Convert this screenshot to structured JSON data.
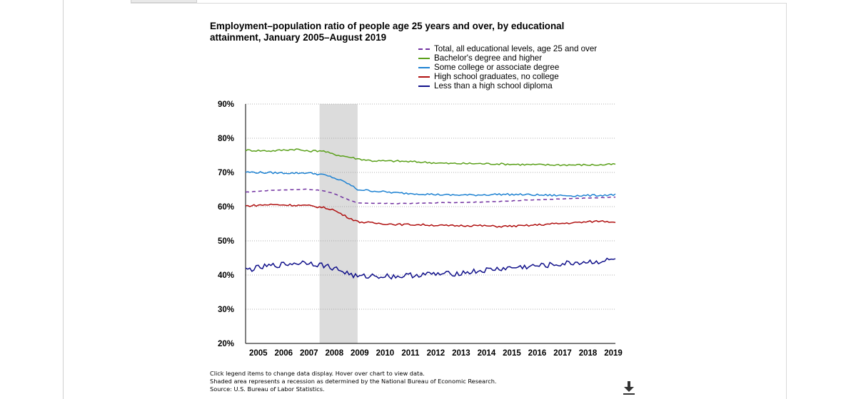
{
  "chart_data": {
    "type": "line",
    "title": "Employment–population ratio of people age 25 years and over, by educational attainment, January 2005–August 2019",
    "x_tick_labels": [
      "2005",
      "2006",
      "2007",
      "2008",
      "2009",
      "2010",
      "2011",
      "2012",
      "2013",
      "2014",
      "2015",
      "2016",
      "2017",
      "2018",
      "2019"
    ],
    "y_tick_labels": [
      "90%",
      "80%",
      "70%",
      "60%",
      "50%",
      "40%",
      "30%",
      "20%"
    ],
    "ylim": [
      20,
      90
    ],
    "xlim": [
      "2005-01",
      "2019-08"
    ],
    "grid": "horizontal dotted",
    "legend_position": "top-right",
    "recession": {
      "start": "2007-12",
      "end": "2009-06"
    },
    "series": [
      {
        "name": "Total, all educational levels, age 25 and over",
        "color": "#7030a0",
        "dashed": true,
        "points": [
          [
            "2005-01",
            64.2
          ],
          [
            "2006-01",
            64.8
          ],
          [
            "2007-01",
            65.0
          ],
          [
            "2007-06",
            65.1
          ],
          [
            "2008-01",
            64.7
          ],
          [
            "2008-06",
            64.0
          ],
          [
            "2009-01",
            62.2
          ],
          [
            "2009-06",
            61.0
          ],
          [
            "2010-01",
            61.0
          ],
          [
            "2011-01",
            60.9
          ],
          [
            "2012-01",
            61.0
          ],
          [
            "2013-01",
            61.2
          ],
          [
            "2014-01",
            61.3
          ],
          [
            "2015-01",
            61.5
          ],
          [
            "2016-01",
            61.9
          ],
          [
            "2017-01",
            62.1
          ],
          [
            "2018-01",
            62.4
          ],
          [
            "2019-01",
            62.6
          ],
          [
            "2019-08",
            62.8
          ]
        ]
      },
      {
        "name": "Bachelor's degree and higher",
        "color": "#5aa01a",
        "dashed": false,
        "points": [
          [
            "2005-01",
            76.5
          ],
          [
            "2006-01",
            76.3
          ],
          [
            "2007-01",
            76.8
          ],
          [
            "2007-06",
            76.2
          ],
          [
            "2008-01",
            76.4
          ],
          [
            "2008-06",
            75.4
          ],
          [
            "2009-01",
            74.6
          ],
          [
            "2009-06",
            74.0
          ],
          [
            "2010-01",
            73.4
          ],
          [
            "2011-01",
            73.3
          ],
          [
            "2012-01",
            73.0
          ],
          [
            "2013-01",
            72.6
          ],
          [
            "2014-01",
            72.6
          ],
          [
            "2015-01",
            72.5
          ],
          [
            "2016-01",
            72.3
          ],
          [
            "2017-01",
            72.2
          ],
          [
            "2018-01",
            72.2
          ],
          [
            "2019-01",
            72.2
          ],
          [
            "2019-08",
            72.4
          ]
        ]
      },
      {
        "name": "Some college or associate degree",
        "color": "#1e82d2",
        "dashed": false,
        "points": [
          [
            "2005-01",
            70.1
          ],
          [
            "2006-01",
            69.9
          ],
          [
            "2007-01",
            69.8
          ],
          [
            "2007-06",
            69.9
          ],
          [
            "2008-01",
            69.4
          ],
          [
            "2008-06",
            68.6
          ],
          [
            "2009-01",
            66.9
          ],
          [
            "2009-06",
            65.0
          ],
          [
            "2010-01",
            64.6
          ],
          [
            "2011-01",
            64.0
          ],
          [
            "2012-01",
            63.7
          ],
          [
            "2013-01",
            63.4
          ],
          [
            "2014-01",
            63.4
          ],
          [
            "2015-01",
            63.6
          ],
          [
            "2016-01",
            63.5
          ],
          [
            "2017-01",
            63.3
          ],
          [
            "2018-01",
            63.2
          ],
          [
            "2019-01",
            63.3
          ],
          [
            "2019-08",
            63.5
          ]
        ]
      },
      {
        "name": "High school graduates, no college",
        "color": "#b01010",
        "dashed": false,
        "points": [
          [
            "2005-01",
            60.2
          ],
          [
            "2006-01",
            60.6
          ],
          [
            "2007-01",
            60.4
          ],
          [
            "2007-06",
            60.3
          ],
          [
            "2008-01",
            59.8
          ],
          [
            "2008-06",
            59.2
          ],
          [
            "2009-01",
            57.0
          ],
          [
            "2009-06",
            55.6
          ],
          [
            "2010-01",
            55.2
          ],
          [
            "2011-01",
            54.8
          ],
          [
            "2012-01",
            54.7
          ],
          [
            "2013-01",
            54.4
          ],
          [
            "2014-01",
            54.5
          ],
          [
            "2015-01",
            54.2
          ],
          [
            "2016-01",
            54.4
          ],
          [
            "2017-01",
            54.9
          ],
          [
            "2018-01",
            55.3
          ],
          [
            "2019-01",
            55.8
          ],
          [
            "2019-08",
            55.5
          ]
        ]
      },
      {
        "name": "Less than a high school diploma",
        "color": "#10108a",
        "dashed": false,
        "points": [
          [
            "2005-01",
            41.5
          ],
          [
            "2006-01",
            42.7
          ],
          [
            "2007-01",
            43.5
          ],
          [
            "2007-06",
            43.8
          ],
          [
            "2008-01",
            42.9
          ],
          [
            "2008-06",
            42.2
          ],
          [
            "2009-01",
            40.6
          ],
          [
            "2009-06",
            39.4
          ],
          [
            "2010-01",
            39.8
          ],
          [
            "2011-01",
            39.6
          ],
          [
            "2012-01",
            40.2
          ],
          [
            "2013-01",
            40.3
          ],
          [
            "2014-01",
            41.0
          ],
          [
            "2015-01",
            41.8
          ],
          [
            "2016-01",
            42.4
          ],
          [
            "2017-01",
            42.9
          ],
          [
            "2018-01",
            43.6
          ],
          [
            "2019-01",
            44.0
          ],
          [
            "2019-08",
            44.5
          ]
        ]
      }
    ]
  },
  "notes": [
    "Click legend items to change data display. Hover over chart to view data.",
    "Shaded area represents a recession as determined by the National Bureau of Economic Research.",
    "Source: U.S. Bureau of Labor Statistics."
  ],
  "icons": {
    "download": "download-icon"
  }
}
